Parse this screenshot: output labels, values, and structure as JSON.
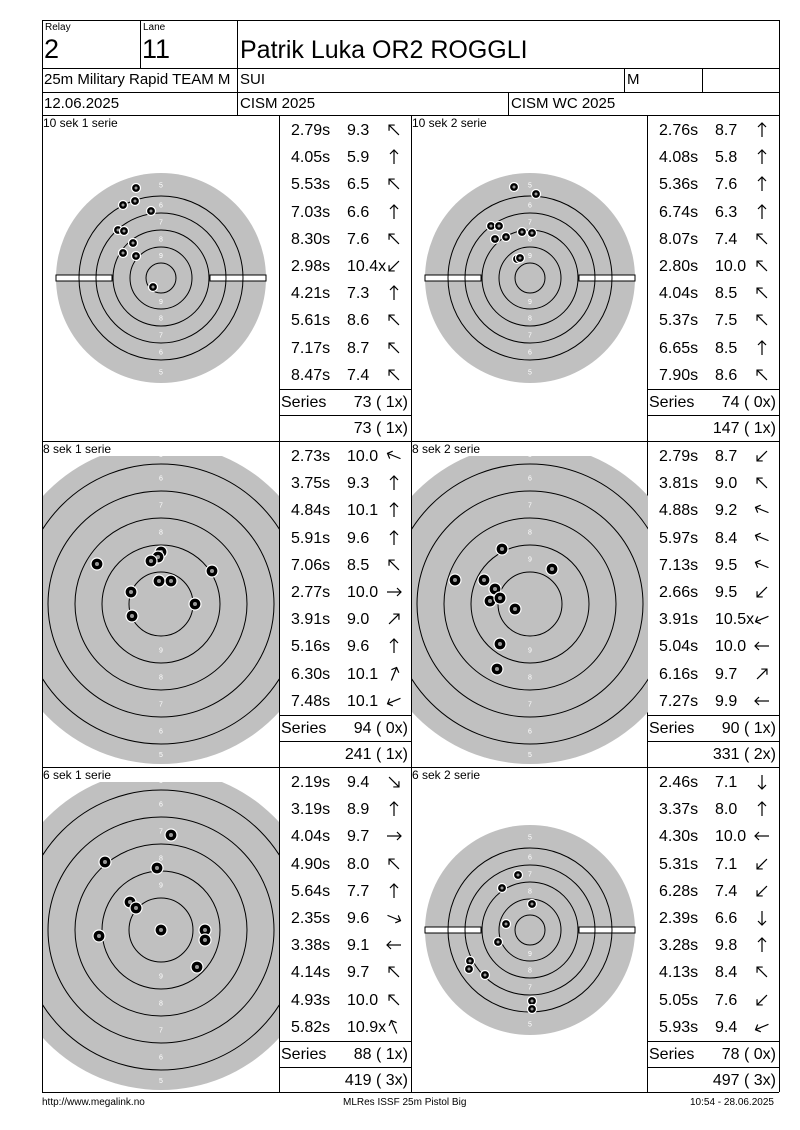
{
  "header": {
    "relay_label": "Relay",
    "relay": "2",
    "lane_label": "Lane",
    "lane": "11",
    "name": "Patrik Luka OR2 ROGGLI",
    "event": "25m Military Rapid TEAM M",
    "nation": "SUI",
    "gender": "M",
    "date": "12.06.2025",
    "competition": "CISM 2025",
    "championship": "CISM WC 2025"
  },
  "series_label": "Series",
  "panels": [
    {
      "title": "10 sek 1 serie",
      "shots": [
        {
          "time": "2.79s",
          "score": "9.3",
          "dir": "nw"
        },
        {
          "time": "4.05s",
          "score": "5.9",
          "dir": "n"
        },
        {
          "time": "5.53s",
          "score": "6.5",
          "dir": "nw"
        },
        {
          "time": "7.03s",
          "score": "6.6",
          "dir": "n"
        },
        {
          "time": "8.30s",
          "score": "7.6",
          "dir": "nw"
        },
        {
          "time": "2.98s",
          "score": "10.4x",
          "dir": "sw"
        },
        {
          "time": "4.21s",
          "score": "7.3",
          "dir": "n"
        },
        {
          "time": "5.61s",
          "score": "8.6",
          "dir": "nw"
        },
        {
          "time": "7.17s",
          "score": "8.7",
          "dir": "nw"
        },
        {
          "time": "8.47s",
          "score": "7.4",
          "dir": "nw"
        }
      ],
      "series_total": "73 ( 1x)",
      "running_total": "73 ( 1x)"
    },
    {
      "title": "10 sek 2 serie",
      "shots": [
        {
          "time": "2.76s",
          "score": "8.7",
          "dir": "n"
        },
        {
          "time": "4.08s",
          "score": "5.8",
          "dir": "n"
        },
        {
          "time": "5.36s",
          "score": "7.6",
          "dir": "n"
        },
        {
          "time": "6.74s",
          "score": "6.3",
          "dir": "n"
        },
        {
          "time": "8.07s",
          "score": "7.4",
          "dir": "nw"
        },
        {
          "time": "2.80s",
          "score": "10.0",
          "dir": "nw"
        },
        {
          "time": "4.04s",
          "score": "8.5",
          "dir": "nw"
        },
        {
          "time": "5.37s",
          "score": "7.5",
          "dir": "nw"
        },
        {
          "time": "6.65s",
          "score": "8.5",
          "dir": "n"
        },
        {
          "time": "7.90s",
          "score": "8.6",
          "dir": "nw"
        }
      ],
      "series_total": "74 ( 0x)",
      "running_total": "147 ( 1x)"
    },
    {
      "title": "8 sek 1 serie",
      "shots": [
        {
          "time": "2.73s",
          "score": "10.0",
          "dir": "wnw"
        },
        {
          "time": "3.75s",
          "score": "9.3",
          "dir": "n"
        },
        {
          "time": "4.84s",
          "score": "10.1",
          "dir": "n"
        },
        {
          "time": "5.91s",
          "score": "9.6",
          "dir": "n"
        },
        {
          "time": "7.06s",
          "score": "8.5",
          "dir": "nw"
        },
        {
          "time": "2.77s",
          "score": "10.0",
          "dir": "e"
        },
        {
          "time": "3.91s",
          "score": "9.0",
          "dir": "ne"
        },
        {
          "time": "5.16s",
          "score": "9.6",
          "dir": "n"
        },
        {
          "time": "6.30s",
          "score": "10.1",
          "dir": "nne"
        },
        {
          "time": "7.48s",
          "score": "10.1",
          "dir": "wsw"
        }
      ],
      "series_total": "94 ( 0x)",
      "running_total": "241 ( 1x)"
    },
    {
      "title": "8 sek 2 serie",
      "shots": [
        {
          "time": "2.79s",
          "score": "8.7",
          "dir": "sw"
        },
        {
          "time": "3.81s",
          "score": "9.0",
          "dir": "nw"
        },
        {
          "time": "4.88s",
          "score": "9.2",
          "dir": "wnw"
        },
        {
          "time": "5.97s",
          "score": "8.4",
          "dir": "wnw"
        },
        {
          "time": "7.13s",
          "score": "9.5",
          "dir": "wnw"
        },
        {
          "time": "2.66s",
          "score": "9.5",
          "dir": "sw"
        },
        {
          "time": "3.91s",
          "score": "10.5x",
          "dir": "wsw"
        },
        {
          "time": "5.04s",
          "score": "10.0",
          "dir": "w"
        },
        {
          "time": "6.16s",
          "score": "9.7",
          "dir": "ne"
        },
        {
          "time": "7.27s",
          "score": "9.9",
          "dir": "w"
        }
      ],
      "series_total": "90 ( 1x)",
      "running_total": "331 ( 2x)"
    },
    {
      "title": "6 sek 1 serie",
      "shots": [
        {
          "time": "2.19s",
          "score": "9.4",
          "dir": "se"
        },
        {
          "time": "3.19s",
          "score": "8.9",
          "dir": "n"
        },
        {
          "time": "4.04s",
          "score": "9.7",
          "dir": "e"
        },
        {
          "time": "4.90s",
          "score": "8.0",
          "dir": "nw"
        },
        {
          "time": "5.64s",
          "score": "7.7",
          "dir": "n"
        },
        {
          "time": "2.35s",
          "score": "9.6",
          "dir": "ese"
        },
        {
          "time": "3.38s",
          "score": "9.1",
          "dir": "w"
        },
        {
          "time": "4.14s",
          "score": "9.7",
          "dir": "nw"
        },
        {
          "time": "4.93s",
          "score": "10.0",
          "dir": "nw"
        },
        {
          "time": "5.82s",
          "score": "10.9x",
          "dir": "nnw"
        }
      ],
      "series_total": "88 ( 1x)",
      "running_total": "419 ( 3x)"
    },
    {
      "title": "6 sek 2 serie",
      "shots": [
        {
          "time": "2.46s",
          "score": "7.1",
          "dir": "s"
        },
        {
          "time": "3.37s",
          "score": "8.0",
          "dir": "n"
        },
        {
          "time": "4.30s",
          "score": "10.0",
          "dir": "w"
        },
        {
          "time": "5.31s",
          "score": "7.1",
          "dir": "sw"
        },
        {
          "time": "6.28s",
          "score": "7.4",
          "dir": "sw"
        },
        {
          "time": "2.39s",
          "score": "6.6",
          "dir": "s"
        },
        {
          "time": "3.28s",
          "score": "9.8",
          "dir": "n"
        },
        {
          "time": "4.13s",
          "score": "8.4",
          "dir": "nw"
        },
        {
          "time": "5.05s",
          "score": "7.6",
          "dir": "sw"
        },
        {
          "time": "5.93s",
          "score": "9.4",
          "dir": "wsw"
        }
      ],
      "series_total": "78 ( 0x)",
      "running_total": "497 ( 3x)"
    }
  ],
  "ring_numbers": [
    "5",
    "6",
    "7",
    "8",
    "9"
  ],
  "footer": {
    "left": "http://www.megalink.no",
    "center": "MLRes ISSF 25m Pistol Big",
    "right": "10:54 - 28.06.2025"
  }
}
